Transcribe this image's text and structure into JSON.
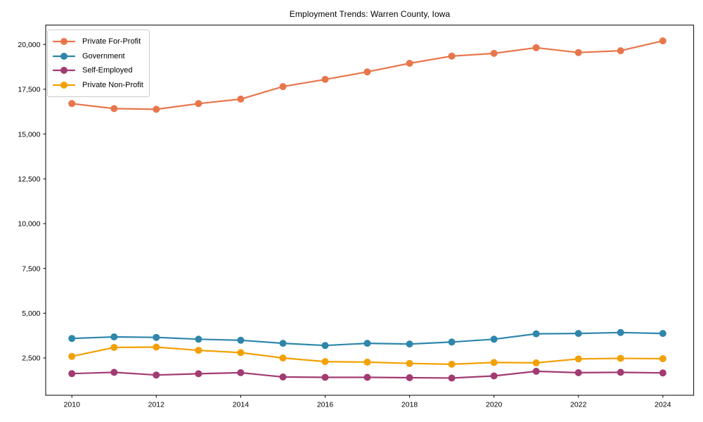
{
  "figure": {
    "background": "#ffffff",
    "axis_color": "#000000",
    "legend_border_color": "#cccccc"
  },
  "chart_data": {
    "type": "line",
    "title": "Employment Trends: Warren County, Iowa",
    "xlabel": "",
    "ylabel": "",
    "x": [
      2010,
      2011,
      2012,
      2013,
      2014,
      2015,
      2016,
      2017,
      2018,
      2019,
      2020,
      2021,
      2022,
      2023,
      2024
    ],
    "x_ticks": [
      2010,
      2012,
      2014,
      2016,
      2018,
      2020,
      2022,
      2024
    ],
    "x_tick_labels": [
      "2010",
      "2012",
      "2014",
      "2016",
      "2018",
      "2020",
      "2022",
      "2024"
    ],
    "y_ticks": [
      2500,
      5000,
      7500,
      10000,
      12500,
      15000,
      17500,
      20000
    ],
    "y_tick_labels": [
      "2,500",
      "5,000",
      "7,500",
      "10,000",
      "12,500",
      "15,000",
      "17,500",
      "20,000"
    ],
    "xlim": [
      2009.38,
      2024.73
    ],
    "ylim": [
      420,
      21080
    ],
    "grid": false,
    "legend_position": "upper-left",
    "series": [
      {
        "name": "Private For-Profit",
        "color": "#e8764b",
        "values": [
          16700,
          16420,
          16380,
          16700,
          16950,
          17650,
          18050,
          18470,
          18950,
          19350,
          19500,
          19820,
          19550,
          19650,
          20200
        ]
      },
      {
        "name": "Government",
        "color": "#2e86ab",
        "values": [
          3590,
          3680,
          3650,
          3550,
          3490,
          3320,
          3200,
          3320,
          3280,
          3390,
          3550,
          3850,
          3870,
          3920,
          3870
        ]
      },
      {
        "name": "Self-Employed",
        "color": "#a23b72",
        "values": [
          1630,
          1700,
          1550,
          1620,
          1680,
          1440,
          1420,
          1420,
          1400,
          1380,
          1500,
          1760,
          1680,
          1700,
          1670
        ]
      },
      {
        "name": "Private Non-Profit",
        "color": "#f2a104",
        "values": [
          2590,
          3090,
          3110,
          2930,
          2800,
          2500,
          2300,
          2270,
          2200,
          2150,
          2250,
          2230,
          2450,
          2480,
          2460
        ]
      }
    ]
  }
}
